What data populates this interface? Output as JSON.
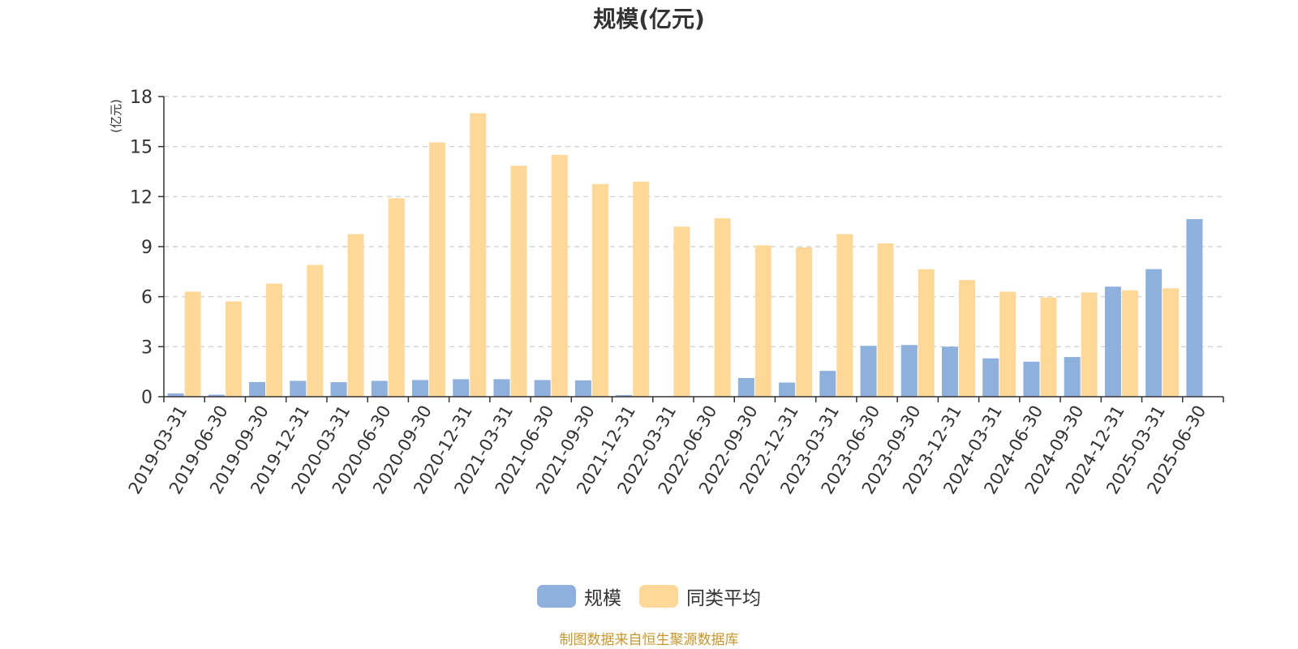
{
  "title": "规模(亿元)",
  "source_note": "制图数据来自恒生聚源数据库",
  "colors": {
    "series_1": "#8eb0dc",
    "series_2": "#ffd898",
    "ylabel": "#e02020",
    "source": "#c8962a",
    "grid": "#cccccc",
    "axis": "#333333"
  },
  "legend": {
    "position": "bottom-center",
    "items": [
      {
        "label": "规模",
        "color": "#8eb0dc"
      },
      {
        "label": "同类平均",
        "color": "#ffd898"
      }
    ]
  },
  "chart_data": {
    "type": "bar",
    "title": "规模(亿元)",
    "ylabel": "(亿元)",
    "xlabel": "",
    "ylim": [
      0,
      18
    ],
    "yticks": [
      0,
      3,
      6,
      9,
      12,
      15,
      18
    ],
    "grid": true,
    "categories": [
      "2019-03-31",
      "2019-06-30",
      "2019-09-30",
      "2019-12-31",
      "2020-03-31",
      "2020-06-30",
      "2020-09-30",
      "2020-12-31",
      "2021-03-31",
      "2021-06-30",
      "2021-09-30",
      "2021-12-31",
      "2022-03-31",
      "2022-06-30",
      "2022-09-30",
      "2022-12-31",
      "2023-03-31",
      "2023-06-30",
      "2023-09-30",
      "2023-12-31",
      "2024-03-31",
      "2024-06-30",
      "2024-09-30",
      "2024-12-31",
      "2025-03-31",
      "2025-06-30"
    ],
    "series": [
      {
        "name": "规模",
        "values": [
          0.2,
          0.12,
          0.88,
          0.95,
          0.87,
          0.95,
          1.0,
          1.05,
          1.05,
          1.0,
          0.98,
          0.1,
          0,
          0,
          1.12,
          0.85,
          1.55,
          3.05,
          3.1,
          3.0,
          2.3,
          2.1,
          2.38,
          6.6,
          7.65,
          10.65
        ]
      },
      {
        "name": "同类平均",
        "values": [
          6.3,
          5.72,
          6.78,
          7.9,
          9.75,
          11.9,
          15.25,
          17.0,
          13.85,
          14.5,
          12.75,
          12.9,
          10.2,
          10.7,
          9.08,
          8.95,
          9.75,
          9.2,
          7.65,
          7.0,
          6.3,
          5.95,
          6.25,
          6.38,
          6.5,
          null
        ]
      }
    ]
  }
}
